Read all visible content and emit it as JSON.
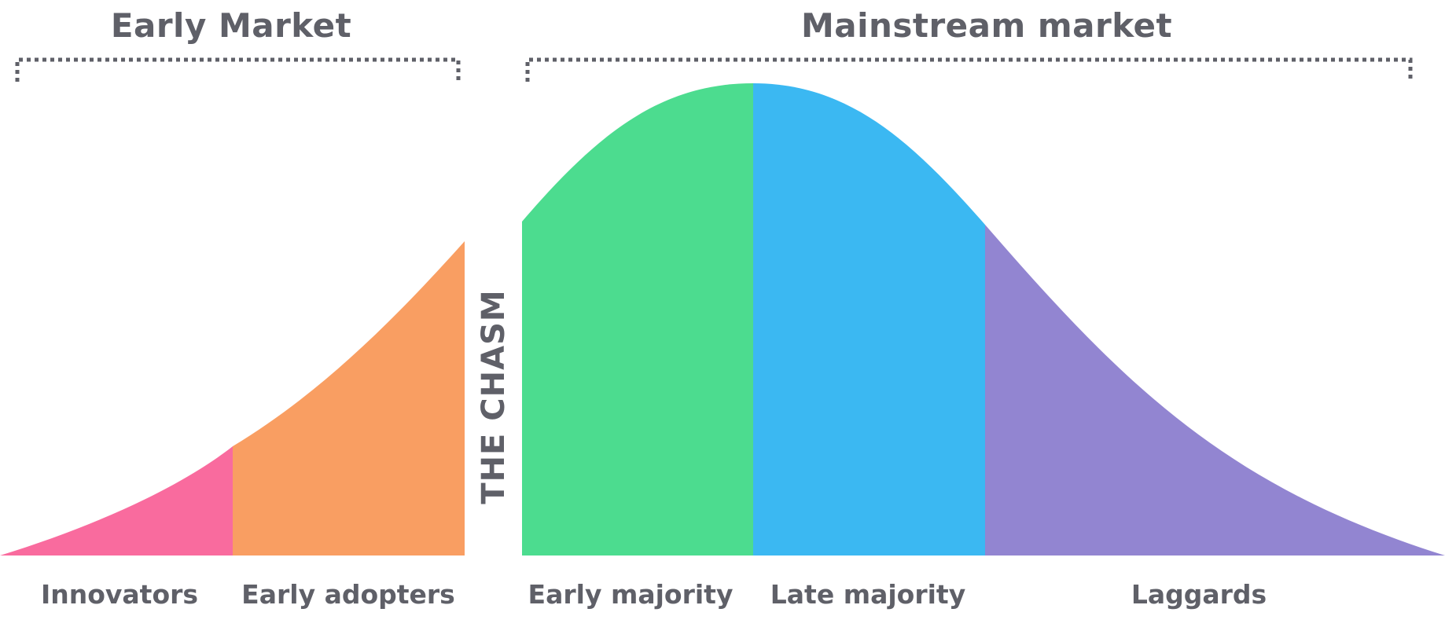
{
  "groups": {
    "early_market": "Early Market",
    "mainstream_market": "Mainstream market"
  },
  "chasm": "THE CHASM",
  "segments": [
    {
      "label": "Innovators",
      "color": "#f96b9e"
    },
    {
      "label": "Early adopters",
      "color": "#f99e62"
    },
    {
      "label": "Early majority",
      "color": "#4cdc8f"
    },
    {
      "label": "Late majority",
      "color": "#3bb8f2"
    },
    {
      "label": "Laggards",
      "color": "#9285d1"
    }
  ],
  "colors": {
    "text": "#5f6068",
    "bracket": "#5f6068"
  }
}
